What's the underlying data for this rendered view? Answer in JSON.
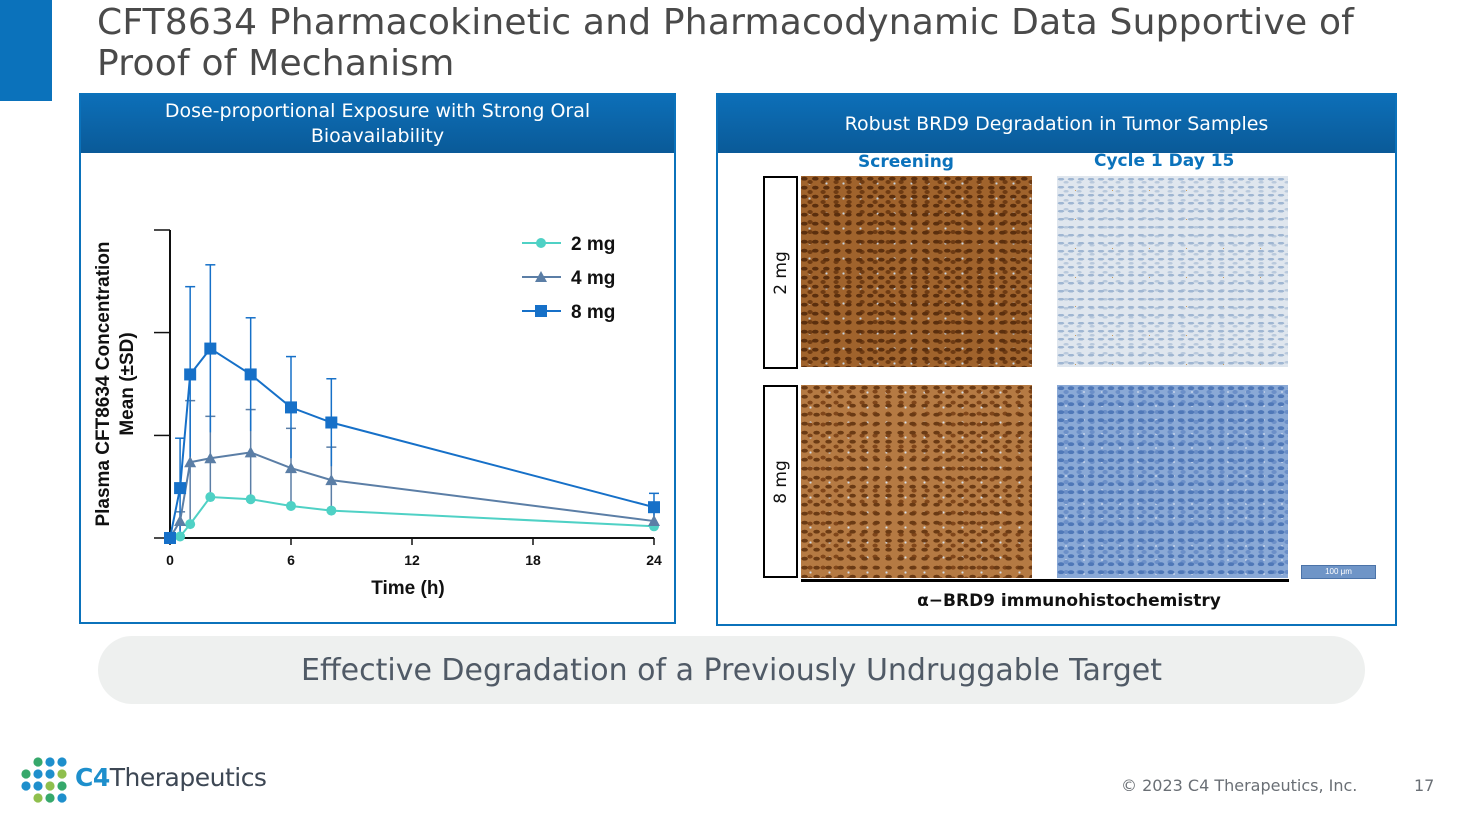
{
  "slide": {
    "title": "CFT8634 Pharmacokinetic and Pharmacodynamic Data Supportive of Proof of Mechanism",
    "banner": "Effective Degradation of a Previously Undruggable Target",
    "copyright": "© 2023 C4 Therapeutics, Inc.",
    "page_number": "17",
    "logo": {
      "brand_bold": "C4",
      "brand_rest": "Therapeutics"
    },
    "colors": {
      "accent": "#0b72bb",
      "series_2mg": "#4fd1c5",
      "series_4mg": "#5b7ea6",
      "series_8mg": "#1670c8"
    }
  },
  "left_panel": {
    "header": "Dose-proportional Exposure with Strong Oral Bioavailability"
  },
  "chart_data": {
    "type": "line",
    "title": "",
    "xlabel": "Time (h)",
    "ylabel_line1": "Plasma CFT8634 Concentration",
    "ylabel_line2": "Mean (±SD)",
    "x_ticks": [
      0,
      6,
      12,
      18,
      24
    ],
    "x_tick_labels": [
      "0",
      "6",
      "12",
      "18",
      "24"
    ],
    "xlim": [
      0,
      24
    ],
    "ylim": [
      0,
      100
    ],
    "y_ticks": [
      0,
      33.3,
      66.7,
      100
    ],
    "y_tick_labels": [
      "",
      "",
      "",
      ""
    ],
    "grid": false,
    "legend": "top-right",
    "series": [
      {
        "name": "2 mg",
        "marker": "circle",
        "color": "#4fd1c5",
        "x": [
          0,
          0.5,
          1,
          2,
          4,
          6,
          8,
          24
        ],
        "y": [
          0,
          0.5,
          4.5,
          13.3,
          12.6,
          10.4,
          8.9,
          3.8
        ],
        "sd": [
          0,
          0,
          0,
          0,
          0,
          0,
          0,
          0
        ]
      },
      {
        "name": "4 mg",
        "marker": "triangle",
        "color": "#5b7ea6",
        "x": [
          0,
          0.5,
          1,
          2,
          4,
          6,
          8,
          24
        ],
        "y": [
          0,
          5.5,
          24.6,
          25.9,
          27.8,
          22.7,
          18.8,
          5.5
        ],
        "sd": [
          0,
          3,
          20,
          13.6,
          13.9,
          12.9,
          10.7,
          3
        ]
      },
      {
        "name": "8 mg",
        "marker": "square",
        "color": "#1670c8",
        "x": [
          0,
          0.5,
          1,
          2,
          4,
          6,
          8,
          24
        ],
        "y": [
          0,
          16.2,
          53.1,
          61.5,
          53.1,
          42.4,
          37.5,
          10
        ],
        "sd": [
          0,
          16.2,
          28.5,
          27.2,
          18.4,
          16.5,
          14.2,
          4.5
        ]
      }
    ]
  },
  "right_panel": {
    "header": "Robust BRD9 Degradation in Tumor Samples",
    "col_labels": [
      "Screening",
      "Cycle 1 Day 15"
    ],
    "row_labels": [
      "2 mg",
      "8 mg"
    ],
    "footer_label": "α−BRD9 immunohistochemistry",
    "scale_bar": "100 μm"
  }
}
